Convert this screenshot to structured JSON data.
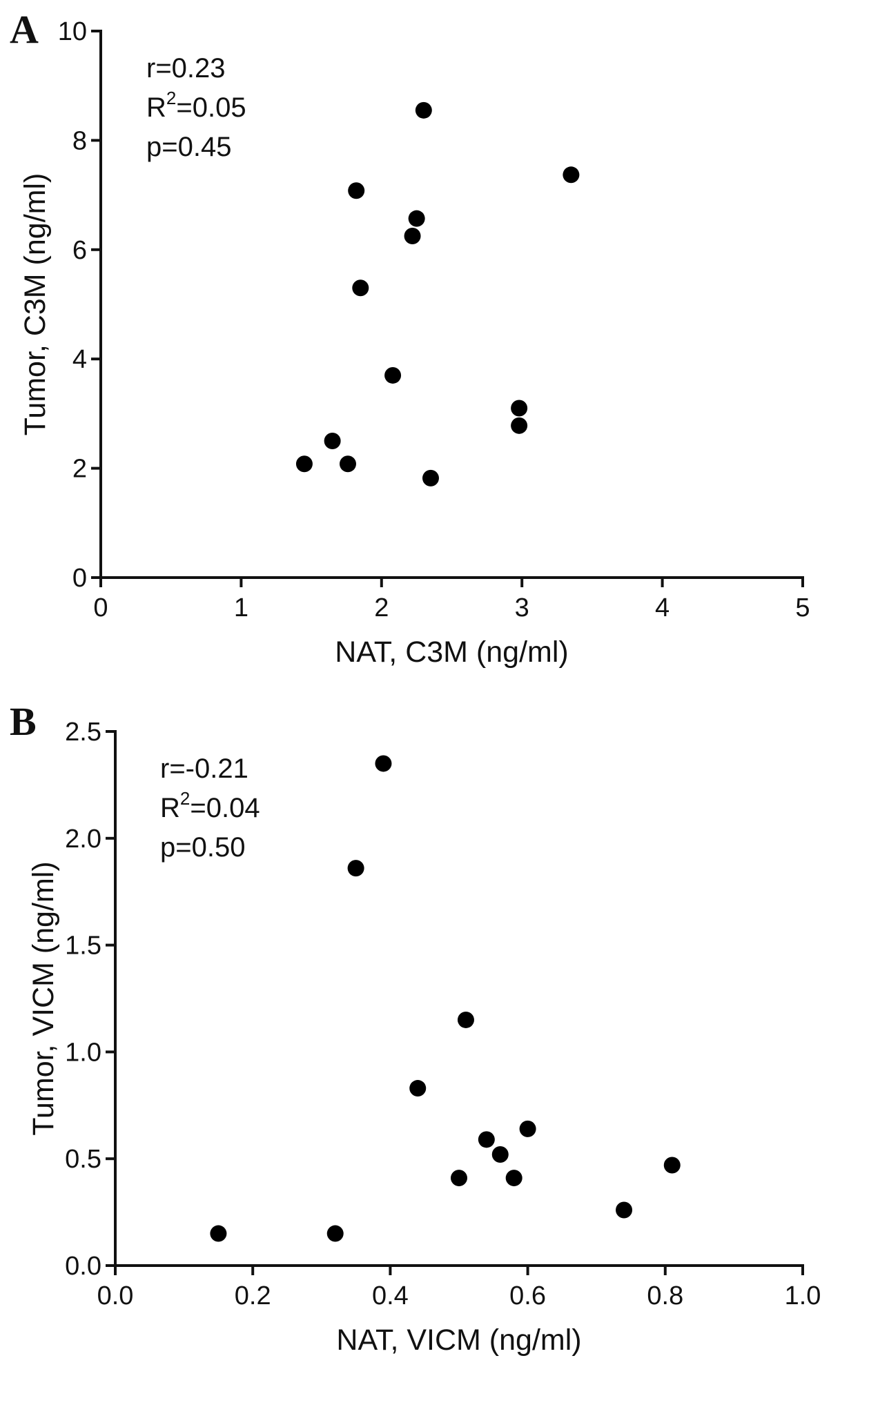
{
  "chart_data": [
    {
      "type": "scatter",
      "panel": "A",
      "xlabel": "NAT, C3M (ng/ml)",
      "ylabel": "Tumor, C3M (ng/ml)",
      "xlim": [
        0,
        5
      ],
      "ylim": [
        0,
        10
      ],
      "xticks": [
        "0",
        "1",
        "2",
        "3",
        "4",
        "5"
      ],
      "yticks": [
        "0",
        "2",
        "4",
        "6",
        "8",
        "10"
      ],
      "grid": false,
      "stats": {
        "r": "r=0.23",
        "r2_prefix": "R",
        "r2_sup": "2",
        "r2_value": "=0.05",
        "p": "p=0.45"
      },
      "points": [
        [
          2.3,
          8.55
        ],
        [
          3.35,
          7.37
        ],
        [
          1.82,
          7.08
        ],
        [
          2.25,
          6.57
        ],
        [
          2.22,
          6.25
        ],
        [
          1.85,
          5.3
        ],
        [
          2.08,
          3.7
        ],
        [
          2.98,
          3.1
        ],
        [
          2.98,
          2.78
        ],
        [
          1.65,
          2.5
        ],
        [
          1.45,
          2.08
        ],
        [
          1.76,
          2.08
        ],
        [
          2.35,
          1.82
        ]
      ]
    },
    {
      "type": "scatter",
      "panel": "B",
      "xlabel": "NAT, VICM (ng/ml)",
      "ylabel": "Tumor, VICM (ng/ml)",
      "xlim": [
        0,
        1
      ],
      "ylim": [
        0,
        2.5
      ],
      "xticks": [
        "0.0",
        "0.2",
        "0.4",
        "0.6",
        "0.8",
        "1.0"
      ],
      "yticks": [
        "0.0",
        "0.5",
        "1.0",
        "1.5",
        "2.0",
        "2.5"
      ],
      "grid": false,
      "stats": {
        "r": "r=-0.21",
        "r2_prefix": "R",
        "r2_sup": "2",
        "r2_value": "=0.04",
        "p": "p=0.50"
      },
      "points": [
        [
          0.39,
          2.35
        ],
        [
          0.35,
          1.86
        ],
        [
          0.51,
          1.15
        ],
        [
          0.44,
          0.83
        ],
        [
          0.6,
          0.64
        ],
        [
          0.54,
          0.59
        ],
        [
          0.56,
          0.52
        ],
        [
          0.5,
          0.41
        ],
        [
          0.58,
          0.41
        ],
        [
          0.81,
          0.47
        ],
        [
          0.74,
          0.26
        ],
        [
          0.15,
          0.15
        ],
        [
          0.32,
          0.15
        ]
      ]
    }
  ]
}
